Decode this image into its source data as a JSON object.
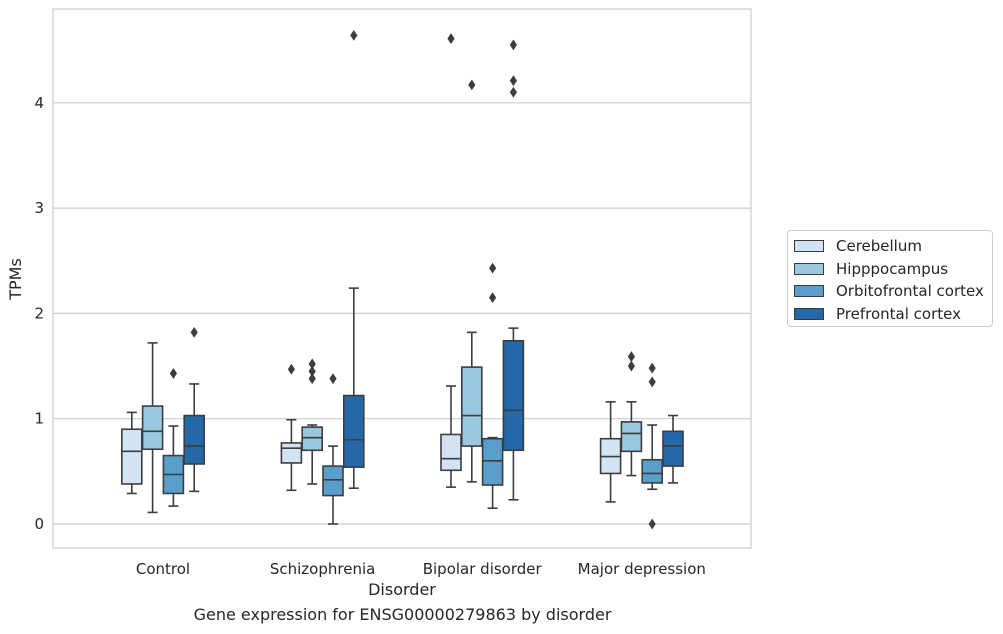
{
  "caption": "Gene expression for ENSG00000279863 by disorder",
  "chart_data": {
    "type": "box",
    "xlabel": "Disorder",
    "ylabel": "TPMs",
    "ylim": [
      -0.22,
      4.9
    ],
    "yticks": [
      0,
      1,
      2,
      3,
      4
    ],
    "grid": true,
    "legend_position": "right",
    "categories": [
      "Control",
      "Schizophrenia",
      "Bipolar disorder",
      "Major depression"
    ],
    "series": [
      {
        "name": "Cerebellum",
        "color": "#d2e3f3",
        "boxes": [
          {
            "whisker_low": 0.29,
            "q1": 0.38,
            "median": 0.69,
            "q3": 0.9,
            "whisker_high": 1.06,
            "outliers": []
          },
          {
            "whisker_low": 0.32,
            "q1": 0.58,
            "median": 0.72,
            "q3": 0.77,
            "whisker_high": 0.99,
            "outliers": [
              1.47
            ]
          },
          {
            "whisker_low": 0.35,
            "q1": 0.51,
            "median": 0.62,
            "q3": 0.85,
            "whisker_high": 1.31,
            "outliers": [
              4.61
            ]
          },
          {
            "whisker_low": 0.21,
            "q1": 0.48,
            "median": 0.64,
            "q3": 0.81,
            "whisker_high": 1.16,
            "outliers": []
          }
        ]
      },
      {
        "name": "Hipppocampus",
        "color": "#9ac8e0",
        "boxes": [
          {
            "whisker_low": 0.11,
            "q1": 0.71,
            "median": 0.88,
            "q3": 1.12,
            "whisker_high": 1.72,
            "outliers": []
          },
          {
            "whisker_low": 0.38,
            "q1": 0.7,
            "median": 0.82,
            "q3": 0.92,
            "whisker_high": 0.94,
            "outliers": [
              1.52,
              1.45,
              1.38
            ]
          },
          {
            "whisker_low": 0.4,
            "q1": 0.74,
            "median": 1.03,
            "q3": 1.49,
            "whisker_high": 1.82,
            "outliers": [
              4.17
            ]
          },
          {
            "whisker_low": 0.46,
            "q1": 0.69,
            "median": 0.86,
            "q3": 0.97,
            "whisker_high": 1.16,
            "outliers": [
              1.59,
              1.5
            ]
          }
        ]
      },
      {
        "name": "Orbitofrontal cortex",
        "color": "#5a9fcc",
        "boxes": [
          {
            "whisker_low": 0.17,
            "q1": 0.29,
            "median": 0.47,
            "q3": 0.65,
            "whisker_high": 0.93,
            "outliers": [
              1.43
            ]
          },
          {
            "whisker_low": 0.0,
            "q1": 0.27,
            "median": 0.42,
            "q3": 0.55,
            "whisker_high": 0.74,
            "outliers": [
              1.38
            ]
          },
          {
            "whisker_low": 0.15,
            "q1": 0.37,
            "median": 0.6,
            "q3": 0.81,
            "whisker_high": 0.82,
            "outliers": [
              2.43,
              2.15
            ]
          },
          {
            "whisker_low": 0.33,
            "q1": 0.39,
            "median": 0.48,
            "q3": 0.61,
            "whisker_high": 0.94,
            "outliers": [
              1.48,
              1.35,
              0.0
            ]
          }
        ]
      },
      {
        "name": "Prefrontal cortex",
        "color": "#2468a8",
        "boxes": [
          {
            "whisker_low": 0.31,
            "q1": 0.57,
            "median": 0.74,
            "q3": 1.03,
            "whisker_high": 1.33,
            "outliers": [
              1.82
            ]
          },
          {
            "whisker_low": 0.34,
            "q1": 0.54,
            "median": 0.8,
            "q3": 1.22,
            "whisker_high": 2.24,
            "outliers": [
              4.64
            ]
          },
          {
            "whisker_low": 0.23,
            "q1": 0.7,
            "median": 1.08,
            "q3": 1.74,
            "whisker_high": 1.86,
            "outliers": [
              4.55,
              4.21,
              4.1
            ]
          },
          {
            "whisker_low": 0.39,
            "q1": 0.55,
            "median": 0.74,
            "q3": 0.88,
            "whisker_high": 1.03,
            "outliers": []
          }
        ]
      }
    ]
  }
}
